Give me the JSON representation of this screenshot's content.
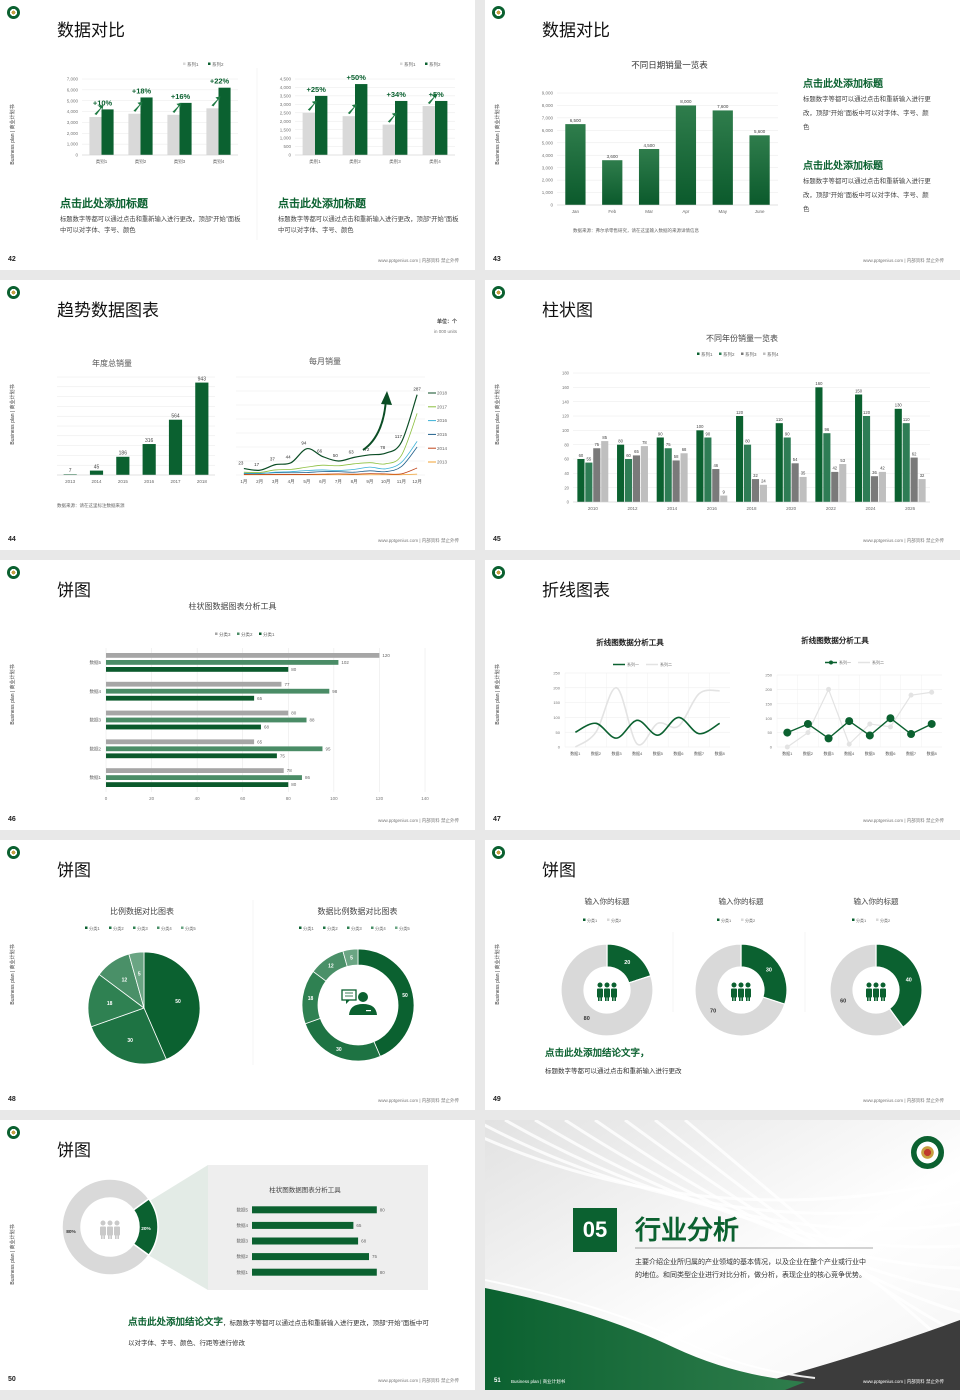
{
  "common": {
    "side_text": "Business plan | 商业计划书",
    "footer": "www.pptgenius.com | 内部资料 禁止外传"
  },
  "colors": {
    "brand_green": "#0b6130",
    "light_gray": "#d9d9d9",
    "dark_gray": "#3c3c3c"
  },
  "slides": [
    {
      "page": "42",
      "title": "数据对比",
      "blocks": [
        {
          "heading": "点击此处添加标题",
          "body": "标题数字等都可以通过点击和重新输入进行更改，顶部“开始”面板中可以对字体、字号、颜色"
        },
        {
          "heading": "点击此处添加标题",
          "body": "标题数字等都可以通过点击和重新输入进行更改，顶部“开始”面板中可以对字体、字号、颜色"
        }
      ]
    },
    {
      "page": "43",
      "title": "数据对比",
      "source": "数据来源：弗尔承零售研究，请在这里输入数据的来源详情信息",
      "blocks": [
        {
          "heading": "点击此处添加标题",
          "body": "标题数字等都可以通过点击和重新输入进行更改，顶部“开始”面板中可以对字体、字号、颜色"
        },
        {
          "heading": "点击此处添加标题",
          "body": "标题数字等都可以通过点击和重新输入进行更改，顶部“开始”面板中可以对字体、字号、颜色"
        }
      ]
    },
    {
      "page": "44",
      "title": "趋势数据图表",
      "unit": "单位：个",
      "unit_en": "in 000 units",
      "source": "数据来源：请在这里标注数据来源"
    },
    {
      "page": "45",
      "title": "柱状图"
    },
    {
      "page": "46",
      "title": "饼图"
    },
    {
      "page": "47",
      "title": "折线图表"
    },
    {
      "page": "48",
      "title": "饼图"
    },
    {
      "page": "49",
      "title": "饼图",
      "conclusion": "点击此处添加结论文字，",
      "body": "标题数字等都可以通过点击和重新输入进行更改"
    },
    {
      "page": "50",
      "title": "饼图",
      "conclusion": "点击此处添加结论文字",
      "body": "，标题数字等都可以通过点击和重新输入进行更改，顶部“开始”面板中可以对字体、字号、颜色、行距等进行修改"
    },
    {
      "page": "51",
      "number": "05",
      "title": "行业分析",
      "description": "主要介绍企业所归属的产业领域的基本情况，以及企业在整个产业或行业中的地位。和同类型企业进行对比分析，做分析，表现企业的核心竞争优势。",
      "footer_left": "Business plan | 商业计划书"
    }
  ],
  "chart_data": [
    {
      "type": "bar",
      "categories": [
        "类别1",
        "类别2",
        "类别3",
        "类别4"
      ],
      "series": [
        {
          "name": "系列1",
          "values": [
            3500,
            3800,
            3700,
            4300
          ],
          "color": "#d9d9d9"
        },
        {
          "name": "系列2",
          "values": [
            4200,
            5300,
            4800,
            6200
          ],
          "color": "#0b6130"
        }
      ],
      "annotations": [
        "+10%",
        "+18%",
        "+16%",
        "+22%"
      ],
      "ylim": [
        0,
        7000
      ],
      "ytick_step": 1000,
      "grid": true,
      "legend": "top-right"
    },
    {
      "type": "bar",
      "categories": [
        "类别1",
        "类别2",
        "类别3",
        "类别4"
      ],
      "series": [
        {
          "name": "系列1",
          "values": [
            2500,
            2300,
            1800,
            2900
          ],
          "color": "#d9d9d9"
        },
        {
          "name": "系列2",
          "values": [
            3500,
            4200,
            3200,
            3200
          ],
          "color": "#0b6130"
        }
      ],
      "annotations": [
        "+25%",
        "+50%",
        "+34%",
        "+5%"
      ],
      "ylim": [
        0,
        4500
      ],
      "ytick_step": 500,
      "grid": true,
      "legend": "top-right"
    },
    {
      "type": "bar",
      "title": "不同日期销量一览表",
      "categories": [
        "Jan",
        "Feb",
        "Mar",
        "Apr",
        "May",
        "June"
      ],
      "series": [
        {
          "values": [
            6500,
            3600,
            4500,
            8000,
            7600,
            5600
          ],
          "color": "#0b6130"
        }
      ],
      "ylim": [
        0,
        9000
      ],
      "ytick_step": 1000,
      "grid": true
    },
    {
      "type": "bar",
      "title": "年度总销量",
      "categories": [
        "2013",
        "2014",
        "2015",
        "2016",
        "2017",
        "2018"
      ],
      "series": [
        {
          "values": [
            7,
            45,
            186,
            316,
            564,
            943
          ],
          "color": "#0b6130"
        }
      ],
      "ylim": [
        0,
        1000
      ],
      "ytick_step": 100,
      "grid": true
    },
    {
      "type": "line",
      "title": "每月销量",
      "categories": [
        "1月",
        "2月",
        "3月",
        "4月",
        "5月",
        "6月",
        "7月",
        "8月",
        "9月",
        "10月",
        "11月",
        "12月"
      ],
      "series": [
        {
          "name": "2018",
          "values": [
            23,
            17,
            37,
            44,
            94,
            66,
            50,
            63,
            72,
            78,
            117,
            287
          ],
          "color": "#0b4d25"
        },
        {
          "name": "2017",
          "values": [
            10,
            9,
            18,
            20,
            28,
            35,
            33,
            40,
            44,
            40,
            70,
            220
          ],
          "color": "#8cbf3f"
        },
        {
          "name": "2016",
          "values": [
            5,
            5,
            10,
            12,
            16,
            18,
            16,
            20,
            28,
            22,
            45,
            120
          ],
          "color": "#3ab0d6"
        },
        {
          "name": "2015",
          "values": [
            6,
            6,
            8,
            8,
            9,
            12,
            12,
            10,
            15,
            12,
            30,
            100
          ],
          "color": "#1f5f8b"
        },
        {
          "name": "2014",
          "values": [
            2,
            2,
            2,
            2,
            2,
            3,
            4,
            3,
            5,
            4,
            4,
            25
          ],
          "color": "#c0451b"
        },
        {
          "name": "2013",
          "values": [
            1,
            1,
            1,
            1,
            1,
            1,
            1,
            1,
            1,
            1,
            1,
            3
          ],
          "color": "#f0a030"
        }
      ],
      "ylim": [
        0,
        350
      ],
      "ytick_step": 50,
      "grid": true,
      "legend": "right"
    },
    {
      "type": "bar",
      "title": "不同年份销量一览表",
      "categories": [
        "2010",
        "2012",
        "2014",
        "2016",
        "2018",
        "2020",
        "2022",
        "2024",
        "2026"
      ],
      "series": [
        {
          "name": "系列1",
          "values": [
            60,
            80,
            90,
            100,
            120,
            110,
            160,
            150,
            130
          ],
          "color": "#0b6130"
        },
        {
          "name": "系列2",
          "values": [
            55,
            60,
            75,
            90,
            80,
            90,
            96,
            120,
            110
          ],
          "color": "#2e7d55"
        },
        {
          "name": "系列3",
          "values": [
            75,
            65,
            58,
            46,
            32,
            54,
            42,
            36,
            62
          ],
          "color": "#7a7a7a"
        },
        {
          "name": "系列4",
          "values": [
            85,
            78,
            68,
            9,
            24,
            35,
            53,
            42,
            32
          ],
          "color": "#bfbfbf"
        }
      ],
      "ylim": [
        0,
        180
      ],
      "ytick_step": 20,
      "grid": true,
      "legend": "top"
    },
    {
      "type": "bar",
      "orientation": "horizontal",
      "title": "柱状图数据图表分析工具",
      "categories": [
        "数据1",
        "数据2",
        "数据3",
        "数据4",
        "数据5"
      ],
      "series": [
        {
          "name": "分类3",
          "values": [
            78,
            65,
            80,
            77,
            120
          ],
          "color": "#a6a6a6"
        },
        {
          "name": "分类2",
          "values": [
            86,
            95,
            88,
            98,
            102
          ],
          "color": "#4a8c66"
        },
        {
          "name": "分类1",
          "values": [
            80,
            75,
            68,
            65,
            80
          ],
          "color": "#0b5a2c"
        }
      ],
      "xlim": [
        0,
        140
      ],
      "xtick_step": 20,
      "grid": true,
      "legend": "top"
    },
    {
      "type": "line",
      "title": "折线图数据分析工具",
      "categories": [
        "数据1",
        "数据2",
        "数据3",
        "数据4",
        "数据5",
        "数据6",
        "数据7",
        "数据8"
      ],
      "series": [
        {
          "name": "系列一",
          "values": [
            50,
            80,
            30,
            90,
            40,
            100,
            45,
            80
          ],
          "color": "#0b6130"
        },
        {
          "name": "系列二",
          "values": [
            0,
            50,
            200,
            10,
            80,
            70,
            180,
            190
          ],
          "color": "#e3e3e3"
        }
      ],
      "ylim": [
        0,
        250
      ],
      "ytick_step": 50,
      "grid": true,
      "legend": "top",
      "smooth": true
    },
    {
      "type": "line",
      "title": "折线图数据分析工具",
      "categories": [
        "数据1",
        "数据2",
        "数据3",
        "数据4",
        "数据5",
        "数据6",
        "数据7",
        "数据8"
      ],
      "series": [
        {
          "name": "系列一",
          "values": [
            50,
            80,
            30,
            90,
            40,
            100,
            45,
            80
          ],
          "color": "#0b6130"
        },
        {
          "name": "系列二",
          "values": [
            0,
            50,
            200,
            10,
            80,
            70,
            180,
            190
          ],
          "color": "#e3e3e3"
        }
      ],
      "ylim": [
        0,
        250
      ],
      "ytick_step": 50,
      "grid": true,
      "legend": "top",
      "markers": true
    },
    {
      "type": "pie",
      "title": "比例数据对比图表",
      "categories": [
        "分类1",
        "分类2",
        "分类3",
        "分类4",
        "分类5"
      ],
      "values": [
        50,
        30,
        18,
        12,
        5
      ],
      "colors": [
        "#0b6130",
        "#1e7343",
        "#2f8152",
        "#4a9068",
        "#6aa583"
      ],
      "legend": "top"
    },
    {
      "type": "pie",
      "donut": true,
      "title": "数据比例数据对比图表",
      "categories": [
        "分类1",
        "分类2",
        "分类3",
        "分类4",
        "分类5"
      ],
      "values": [
        50,
        30,
        18,
        12,
        5
      ],
      "colors": [
        "#0b6130",
        "#1e7343",
        "#2f8152",
        "#4a9068",
        "#6aa583"
      ],
      "legend": "top"
    },
    {
      "type": "pie",
      "donut": true,
      "title": "输入你的标题",
      "categories": [
        "分类1",
        "分类2"
      ],
      "values": [
        20,
        80
      ],
      "colors": [
        "#0b6130",
        "#d9d9d9"
      ],
      "legend": "top"
    },
    {
      "type": "pie",
      "donut": true,
      "title": "输入你的标题",
      "categories": [
        "分类1",
        "分类2"
      ],
      "values": [
        30,
        70
      ],
      "colors": [
        "#0b6130",
        "#d9d9d9"
      ],
      "legend": "top"
    },
    {
      "type": "pie",
      "donut": true,
      "title": "输入你的标题",
      "categories": [
        "分类1",
        "分类2"
      ],
      "values": [
        40,
        60
      ],
      "colors": [
        "#0b6130",
        "#d9d9d9"
      ],
      "legend": "top"
    },
    {
      "type": "pie",
      "donut": true,
      "values": [
        20,
        80
      ],
      "unit": "%",
      "colors": [
        "#0b6130",
        "#d9d9d9"
      ]
    },
    {
      "type": "bar",
      "orientation": "horizontal",
      "title": "柱状图数据图表分析工具",
      "categories": [
        "数据1",
        "数据2",
        "数据3",
        "数据4",
        "数据5"
      ],
      "series": [
        {
          "values": [
            80,
            75,
            68,
            65,
            80
          ],
          "color": "#0b6130"
        }
      ],
      "xlim": [
        0,
        100
      ]
    }
  ]
}
